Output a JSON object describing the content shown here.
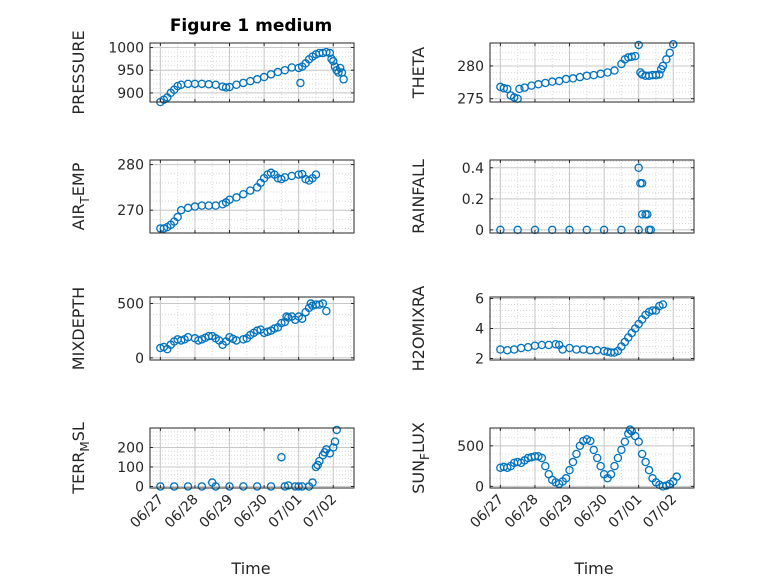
{
  "figure_title": "Figure 1 medium",
  "marker_color": "#0072BD",
  "chart_data": [
    {
      "type": "scatter",
      "ylabel": "PRESSURE",
      "ylabel_sub": [],
      "ylim": [
        880,
        1010
      ],
      "yticks": [
        900,
        950,
        1000
      ],
      "yticklabels": [
        "900",
        "950",
        "1000"
      ],
      "grid": true,
      "minor_grid": true,
      "points": [
        [
          0.0,
          880
        ],
        [
          0.1,
          885
        ],
        [
          0.2,
          890
        ],
        [
          0.3,
          900
        ],
        [
          0.4,
          907
        ],
        [
          0.5,
          915
        ],
        [
          0.6,
          918
        ],
        [
          0.8,
          920
        ],
        [
          1.0,
          920
        ],
        [
          1.2,
          920
        ],
        [
          1.4,
          919
        ],
        [
          1.6,
          918
        ],
        [
          1.8,
          914
        ],
        [
          1.9,
          912
        ],
        [
          2.0,
          913
        ],
        [
          2.2,
          918
        ],
        [
          2.4,
          922
        ],
        [
          2.6,
          926
        ],
        [
          2.8,
          930
        ],
        [
          3.0,
          935
        ],
        [
          3.2,
          941
        ],
        [
          3.4,
          946
        ],
        [
          3.6,
          950
        ],
        [
          3.8,
          956
        ],
        [
          4.0,
          955
        ],
        [
          4.05,
          922
        ],
        [
          4.1,
          958
        ],
        [
          4.2,
          965
        ],
        [
          4.3,
          974
        ],
        [
          4.4,
          980
        ],
        [
          4.5,
          985
        ],
        [
          4.6,
          988
        ],
        [
          4.7,
          988
        ],
        [
          4.8,
          990
        ],
        [
          4.9,
          988
        ],
        [
          4.95,
          975
        ],
        [
          5.0,
          970
        ],
        [
          5.05,
          958
        ],
        [
          5.1,
          950
        ],
        [
          5.15,
          945
        ],
        [
          5.2,
          955
        ],
        [
          5.25,
          945
        ],
        [
          5.3,
          930
        ]
      ]
    },
    {
      "type": "scatter",
      "ylabel": "THETA",
      "ylabel_sub": [],
      "ylim": [
        274.5,
        283.5
      ],
      "yticks": [
        275,
        280
      ],
      "yticklabels": [
        "275",
        "280"
      ],
      "grid": true,
      "minor_grid": true,
      "points": [
        [
          0.0,
          276.8
        ],
        [
          0.1,
          276.6
        ],
        [
          0.2,
          276.5
        ],
        [
          0.3,
          275.5
        ],
        [
          0.4,
          275.2
        ],
        [
          0.5,
          275.0
        ],
        [
          0.55,
          276.5
        ],
        [
          0.7,
          276.7
        ],
        [
          0.9,
          277.0
        ],
        [
          1.1,
          277.2
        ],
        [
          1.3,
          277.4
        ],
        [
          1.5,
          277.6
        ],
        [
          1.7,
          277.7
        ],
        [
          1.9,
          278.0
        ],
        [
          2.1,
          278.1
        ],
        [
          2.3,
          278.3
        ],
        [
          2.5,
          278.5
        ],
        [
          2.7,
          278.6
        ],
        [
          2.9,
          278.8
        ],
        [
          3.1,
          279.0
        ],
        [
          3.3,
          279.3
        ],
        [
          3.5,
          280.3
        ],
        [
          3.6,
          281.0
        ],
        [
          3.7,
          281.3
        ],
        [
          3.8,
          281.4
        ],
        [
          3.9,
          281.5
        ],
        [
          4.0,
          283.2
        ],
        [
          4.05,
          279.0
        ],
        [
          4.1,
          278.7
        ],
        [
          4.2,
          278.5
        ],
        [
          4.3,
          278.5
        ],
        [
          4.4,
          278.6
        ],
        [
          4.5,
          278.6
        ],
        [
          4.6,
          278.7
        ],
        [
          4.65,
          279.5
        ],
        [
          4.7,
          280.0
        ],
        [
          4.8,
          281.0
        ],
        [
          4.9,
          282.0
        ],
        [
          5.0,
          283.3
        ]
      ]
    },
    {
      "type": "scatter",
      "ylabel": "AIR",
      "ylabel_sub": [
        "T",
        "EMP"
      ],
      "ylim": [
        265,
        281
      ],
      "yticks": [
        270,
        280
      ],
      "yticklabels": [
        "270",
        "280"
      ],
      "grid": true,
      "minor_grid": true,
      "points": [
        [
          0.0,
          266.0
        ],
        [
          0.1,
          266.0
        ],
        [
          0.2,
          266.3
        ],
        [
          0.3,
          266.8
        ],
        [
          0.4,
          267.5
        ],
        [
          0.5,
          268.5
        ],
        [
          0.6,
          270.0
        ],
        [
          0.8,
          270.5
        ],
        [
          1.0,
          270.8
        ],
        [
          1.2,
          271.0
        ],
        [
          1.4,
          271.0
        ],
        [
          1.6,
          271.0
        ],
        [
          1.8,
          271.3
        ],
        [
          1.9,
          271.7
        ],
        [
          2.0,
          272.3
        ],
        [
          2.2,
          272.8
        ],
        [
          2.4,
          273.5
        ],
        [
          2.6,
          274.3
        ],
        [
          2.8,
          275.0
        ],
        [
          2.9,
          276.0
        ],
        [
          3.0,
          277.0
        ],
        [
          3.1,
          277.8
        ],
        [
          3.2,
          278.2
        ],
        [
          3.3,
          277.8
        ],
        [
          3.4,
          277.0
        ],
        [
          3.5,
          276.8
        ],
        [
          3.6,
          277.2
        ],
        [
          3.8,
          277.5
        ],
        [
          4.0,
          277.8
        ],
        [
          4.1,
          277.9
        ],
        [
          4.2,
          276.8
        ],
        [
          4.3,
          276.5
        ],
        [
          4.4,
          277.0
        ],
        [
          4.5,
          277.8
        ]
      ]
    },
    {
      "type": "scatter",
      "ylabel": "RAINFALL",
      "ylabel_sub": [],
      "ylim": [
        -0.02,
        0.45
      ],
      "yticks": [
        0,
        0.2,
        0.4
      ],
      "yticklabels": [
        "0",
        "0.2",
        "0.4"
      ],
      "grid": true,
      "minor_grid": true,
      "points": [
        [
          0.0,
          0
        ],
        [
          0.5,
          0
        ],
        [
          1.0,
          0
        ],
        [
          1.5,
          0
        ],
        [
          2.0,
          0
        ],
        [
          2.5,
          0
        ],
        [
          3.0,
          0
        ],
        [
          3.5,
          0
        ],
        [
          4.0,
          0
        ],
        [
          4.0,
          0.4
        ],
        [
          4.05,
          0.3
        ],
        [
          4.1,
          0.3
        ],
        [
          4.1,
          0.1
        ],
        [
          4.2,
          0.1
        ],
        [
          4.25,
          0.1
        ],
        [
          4.3,
          0
        ],
        [
          4.35,
          0
        ]
      ]
    },
    {
      "type": "scatter",
      "ylabel": "MIXDEPTH",
      "ylabel_sub": [],
      "ylim": [
        -20,
        560
      ],
      "yticks": [
        0,
        500
      ],
      "yticklabels": [
        "0",
        "500"
      ],
      "grid": true,
      "minor_grid": true,
      "points": [
        [
          0.0,
          90
        ],
        [
          0.1,
          100
        ],
        [
          0.2,
          80
        ],
        [
          0.3,
          120
        ],
        [
          0.4,
          150
        ],
        [
          0.5,
          170
        ],
        [
          0.6,
          160
        ],
        [
          0.7,
          170
        ],
        [
          0.8,
          190
        ],
        [
          1.0,
          180
        ],
        [
          1.1,
          160
        ],
        [
          1.2,
          170
        ],
        [
          1.3,
          185
        ],
        [
          1.4,
          200
        ],
        [
          1.5,
          200
        ],
        [
          1.6,
          180
        ],
        [
          1.7,
          160
        ],
        [
          1.8,
          120
        ],
        [
          1.9,
          150
        ],
        [
          2.0,
          190
        ],
        [
          2.1,
          175
        ],
        [
          2.2,
          160
        ],
        [
          2.4,
          170
        ],
        [
          2.5,
          180
        ],
        [
          2.6,
          210
        ],
        [
          2.7,
          230
        ],
        [
          2.8,
          250
        ],
        [
          2.9,
          260
        ],
        [
          3.0,
          230
        ],
        [
          3.1,
          240
        ],
        [
          3.2,
          250
        ],
        [
          3.3,
          270
        ],
        [
          3.4,
          280
        ],
        [
          3.5,
          320
        ],
        [
          3.6,
          330
        ],
        [
          3.65,
          380
        ],
        [
          3.7,
          370
        ],
        [
          3.8,
          380
        ],
        [
          3.9,
          350
        ],
        [
          4.0,
          380
        ],
        [
          4.1,
          360
        ],
        [
          4.2,
          420
        ],
        [
          4.3,
          460
        ],
        [
          4.35,
          500
        ],
        [
          4.4,
          480
        ],
        [
          4.5,
          490
        ],
        [
          4.6,
          490
        ],
        [
          4.7,
          500
        ],
        [
          4.8,
          430
        ]
      ]
    },
    {
      "type": "scatter",
      "ylabel": "H2OMIXRA",
      "ylabel_sub": [],
      "ylim": [
        1.9,
        6.1
      ],
      "yticks": [
        2,
        4,
        6
      ],
      "yticklabels": [
        "2",
        "4",
        "6"
      ],
      "grid": true,
      "minor_grid": true,
      "points": [
        [
          0.0,
          2.6
        ],
        [
          0.2,
          2.55
        ],
        [
          0.4,
          2.6
        ],
        [
          0.6,
          2.7
        ],
        [
          0.8,
          2.75
        ],
        [
          1.0,
          2.85
        ],
        [
          1.2,
          2.9
        ],
        [
          1.4,
          2.9
        ],
        [
          1.6,
          2.95
        ],
        [
          1.7,
          2.9
        ],
        [
          1.8,
          2.6
        ],
        [
          2.0,
          2.7
        ],
        [
          2.2,
          2.6
        ],
        [
          2.4,
          2.6
        ],
        [
          2.6,
          2.55
        ],
        [
          2.8,
          2.55
        ],
        [
          3.0,
          2.5
        ],
        [
          3.1,
          2.45
        ],
        [
          3.2,
          2.4
        ],
        [
          3.3,
          2.4
        ],
        [
          3.4,
          2.5
        ],
        [
          3.5,
          2.8
        ],
        [
          3.6,
          3.1
        ],
        [
          3.7,
          3.4
        ],
        [
          3.8,
          3.7
        ],
        [
          3.9,
          4.0
        ],
        [
          4.0,
          4.3
        ],
        [
          4.1,
          4.6
        ],
        [
          4.2,
          4.9
        ],
        [
          4.3,
          5.1
        ],
        [
          4.4,
          5.2
        ],
        [
          4.5,
          5.2
        ],
        [
          4.6,
          5.5
        ],
        [
          4.7,
          5.6
        ]
      ]
    },
    {
      "type": "scatter",
      "ylabel": "TERR",
      "ylabel_sub": [
        "M",
        "SL"
      ],
      "ylim": [
        -8,
        300
      ],
      "yticks": [
        0,
        100,
        200
      ],
      "yticklabels": [
        "0",
        "100",
        "200"
      ],
      "grid": true,
      "minor_grid": true,
      "points": [
        [
          0.0,
          0
        ],
        [
          0.4,
          0
        ],
        [
          0.8,
          0
        ],
        [
          1.2,
          0
        ],
        [
          1.6,
          0
        ],
        [
          2.0,
          0
        ],
        [
          2.4,
          0
        ],
        [
          2.8,
          0
        ],
        [
          3.2,
          0
        ],
        [
          3.6,
          0
        ],
        [
          4.0,
          0
        ],
        [
          1.5,
          20
        ],
        [
          3.5,
          150
        ],
        [
          3.7,
          5
        ],
        [
          3.9,
          0
        ],
        [
          4.1,
          0
        ],
        [
          4.3,
          0
        ],
        [
          4.4,
          20
        ],
        [
          4.5,
          100
        ],
        [
          4.55,
          110
        ],
        [
          4.6,
          130
        ],
        [
          4.7,
          160
        ],
        [
          4.75,
          175
        ],
        [
          4.8,
          190
        ],
        [
          4.9,
          170
        ],
        [
          5.0,
          200
        ],
        [
          5.05,
          230
        ],
        [
          5.1,
          290
        ]
      ]
    },
    {
      "type": "scatter",
      "ylabel": "SUN",
      "ylabel_sub": [
        "F",
        "LUX"
      ],
      "ylim": [
        -20,
        720
      ],
      "yticks": [
        0,
        500
      ],
      "yticklabels": [
        "0",
        "500"
      ],
      "grid": true,
      "minor_grid": true,
      "points": [
        [
          0.0,
          230
        ],
        [
          0.1,
          240
        ],
        [
          0.2,
          230
        ],
        [
          0.3,
          250
        ],
        [
          0.4,
          290
        ],
        [
          0.5,
          300
        ],
        [
          0.6,
          290
        ],
        [
          0.7,
          320
        ],
        [
          0.8,
          350
        ],
        [
          0.9,
          360
        ],
        [
          1.0,
          370
        ],
        [
          1.1,
          370
        ],
        [
          1.2,
          350
        ],
        [
          1.3,
          250
        ],
        [
          1.4,
          150
        ],
        [
          1.5,
          80
        ],
        [
          1.6,
          50
        ],
        [
          1.7,
          30
        ],
        [
          1.8,
          60
        ],
        [
          1.9,
          100
        ],
        [
          2.0,
          200
        ],
        [
          2.1,
          300
        ],
        [
          2.2,
          400
        ],
        [
          2.3,
          500
        ],
        [
          2.4,
          560
        ],
        [
          2.5,
          580
        ],
        [
          2.6,
          560
        ],
        [
          2.7,
          450
        ],
        [
          2.8,
          350
        ],
        [
          2.9,
          250
        ],
        [
          3.0,
          150
        ],
        [
          3.1,
          100
        ],
        [
          3.2,
          150
        ],
        [
          3.3,
          250
        ],
        [
          3.4,
          350
        ],
        [
          3.5,
          450
        ],
        [
          3.6,
          550
        ],
        [
          3.7,
          650
        ],
        [
          3.75,
          700
        ],
        [
          3.8,
          680
        ],
        [
          3.9,
          620
        ],
        [
          4.0,
          550
        ],
        [
          4.1,
          400
        ],
        [
          4.2,
          300
        ],
        [
          4.3,
          200
        ],
        [
          4.4,
          100
        ],
        [
          4.5,
          50
        ],
        [
          4.6,
          20
        ],
        [
          4.7,
          0
        ],
        [
          4.8,
          10
        ],
        [
          4.9,
          30
        ],
        [
          5.0,
          60
        ],
        [
          5.1,
          120
        ]
      ]
    }
  ],
  "x_axis": {
    "label": "Time",
    "ticks": [
      0,
      1,
      2,
      3,
      4,
      5
    ],
    "ticklabels": [
      "06/27",
      "06/28",
      "06/29",
      "06/30",
      "07/01",
      "07/02"
    ],
    "xlim": [
      -0.3,
      5.6
    ]
  }
}
